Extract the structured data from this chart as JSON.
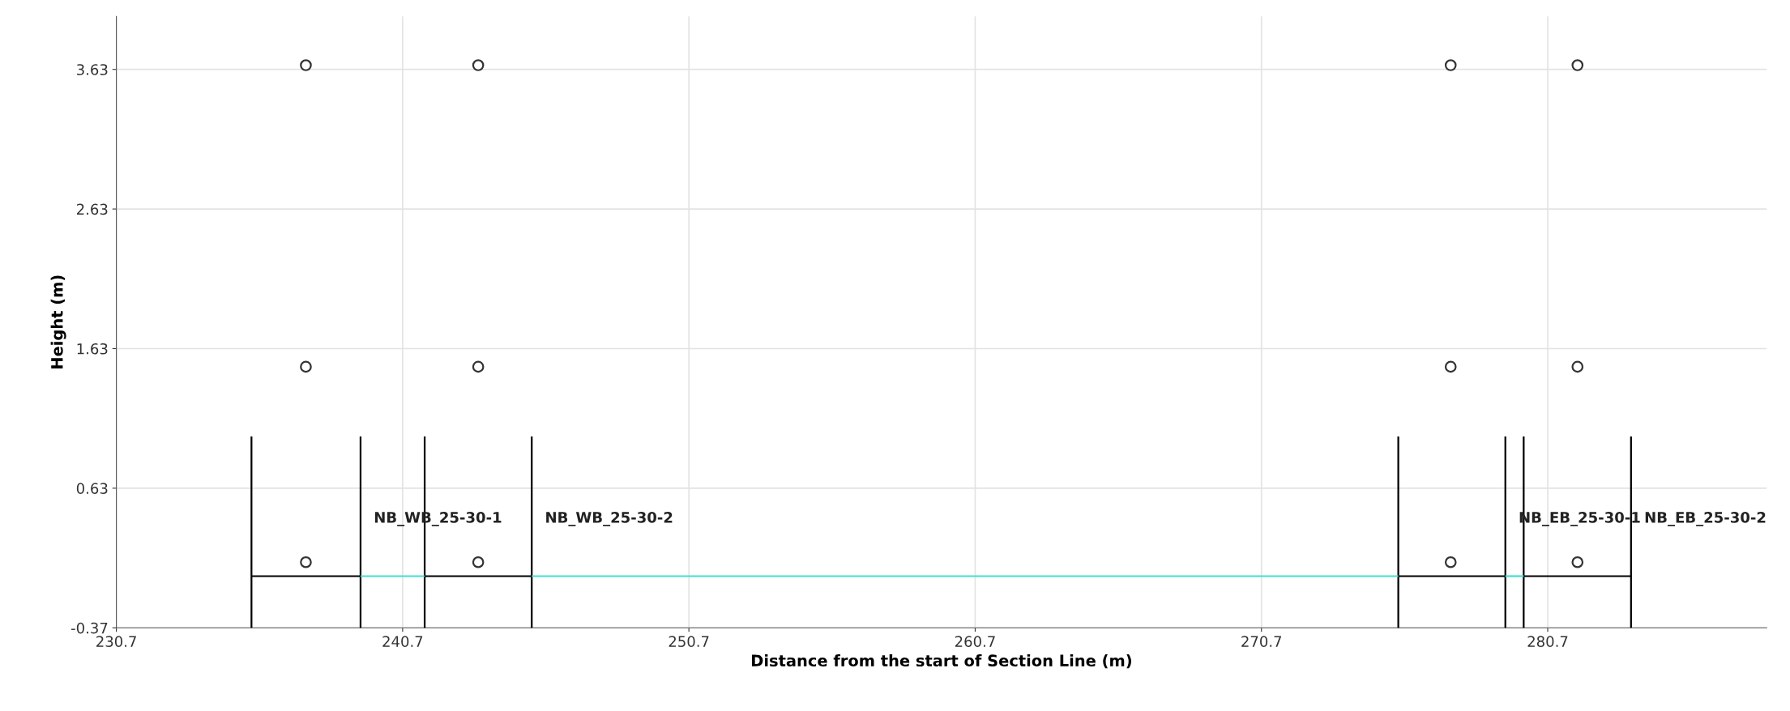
{
  "chart_data": {
    "type": "line",
    "xlabel": "Distance from the start of Section Line (m)",
    "ylabel": "Height (m)",
    "xlim": [
      230.7,
      288.35
    ],
    "xticks": [
      230.7,
      240.7,
      250.7,
      260.7,
      270.7,
      280.7
    ],
    "ylim": [
      -0.37,
      4.01
    ],
    "yticks": [
      -0.37,
      0.63,
      1.63,
      2.63,
      3.63
    ],
    "grid": true,
    "series": [
      {
        "color": "#000000",
        "x": [
          235.42,
          235.42,
          235.42,
          239.23,
          239.23,
          239.23
        ],
        "values": [
          1.0,
          -0.37,
          0,
          0,
          -0.37,
          1.0
        ]
      },
      {
        "color": "#000000",
        "x": [
          241.47,
          241.47,
          241.47,
          245.21,
          245.21,
          245.21
        ],
        "values": [
          1.0,
          -0.37,
          0,
          0,
          -0.37,
          1.0
        ]
      },
      {
        "color": "#000000",
        "x": [
          275.48,
          275.48,
          275.48,
          279.22,
          279.22,
          279.22
        ],
        "values": [
          1.0,
          -0.37,
          0,
          0,
          -0.37,
          1.0
        ]
      },
      {
        "color": "#000000",
        "x": [
          279.86,
          279.86,
          279.86,
          283.61,
          283.61,
          283.61
        ],
        "values": [
          1.0,
          -0.37,
          0,
          0,
          -0.37,
          1.0
        ]
      },
      {
        "color": "#40e0d0",
        "x": [
          239.23,
          241.47
        ],
        "values": [
          0,
          0
        ]
      },
      {
        "color": "#40e0d0",
        "x": [
          245.21,
          275.48
        ],
        "values": [
          0,
          0
        ]
      },
      {
        "color": "#40e0d0",
        "x": [
          279.22,
          279.86
        ],
        "values": [
          0,
          0
        ]
      },
      {
        "type": "scatter",
        "color": "#333333",
        "marker": "circle",
        "x": [
          237.32,
          243.34,
          277.31,
          281.74,
          237.32,
          243.34,
          277.31,
          281.74,
          237.32,
          243.34,
          277.31,
          281.74
        ],
        "values": [
          3.66,
          3.66,
          3.66,
          3.66,
          1.5,
          1.5,
          1.5,
          1.5,
          0.1,
          0.1,
          0.1,
          0.1
        ]
      }
    ],
    "annotations": [
      "NB_WB_25-30-1",
      "NB_WB_25-30-2",
      "NB_EB_25-30-1",
      "NB_EB_25-30-2"
    ]
  }
}
